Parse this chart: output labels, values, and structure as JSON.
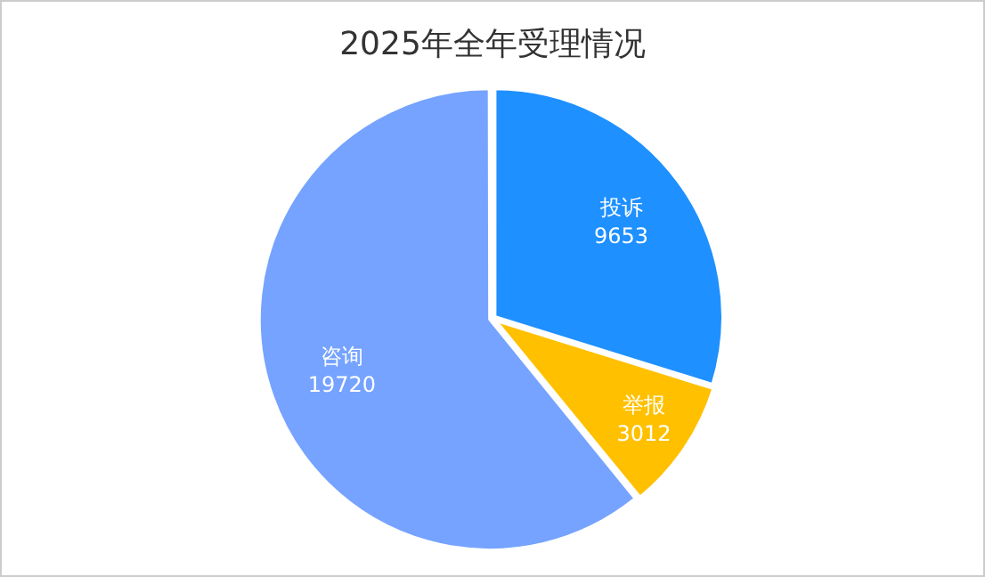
{
  "chart_data": {
    "type": "pie",
    "title": "2025年全年受理情况",
    "categories": [
      "投诉",
      "举报",
      "咨询"
    ],
    "values": [
      9653,
      3012,
      19720
    ],
    "colors": [
      "#1e90ff",
      "#ffc000",
      "#75a3ff"
    ],
    "data_labels": true,
    "legend": false
  }
}
